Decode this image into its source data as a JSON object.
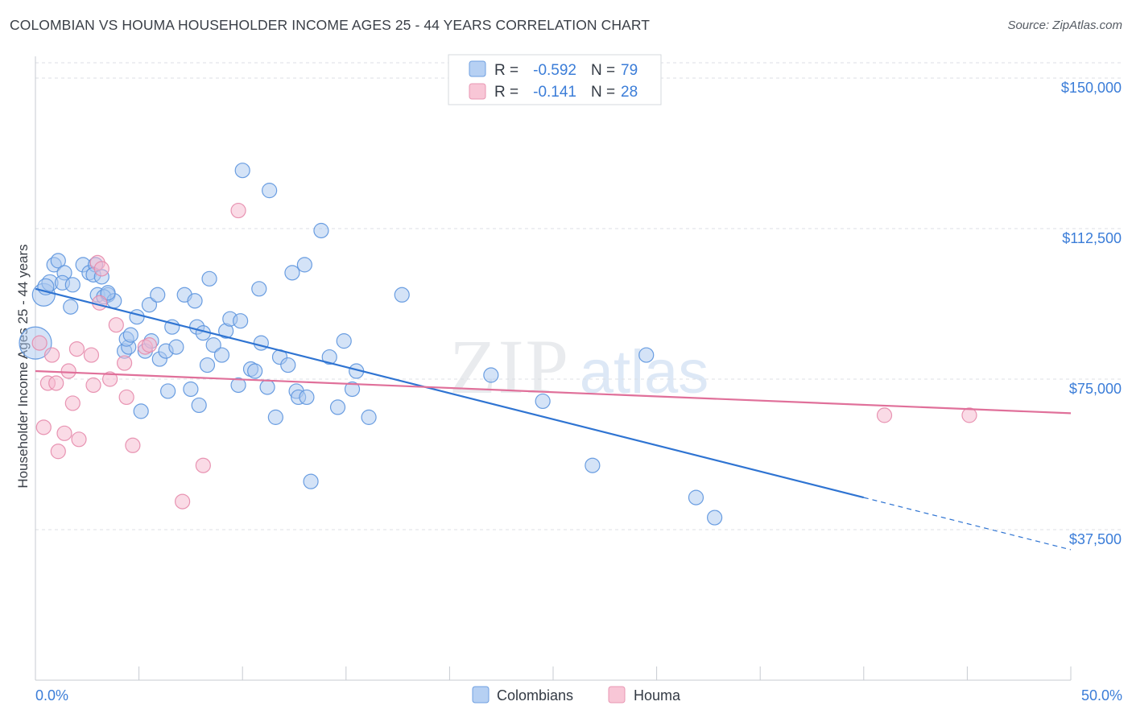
{
  "header": {
    "title": "COLOMBIAN VS HOUMA HOUSEHOLDER INCOME AGES 25 - 44 YEARS CORRELATION CHART",
    "source": "Source: ZipAtlas.com"
  },
  "watermark": {
    "zip": "ZIP",
    "atlas": "atlas"
  },
  "colors": {
    "blue": "#3b7dd8",
    "blue_fill": "#a9c8f0",
    "pink": "#e0709a",
    "pink_fill": "#f5b8cd",
    "axis_text": "#3b7dd8",
    "grid": "#dcdfe4"
  },
  "legend_top": {
    "rows": [
      {
        "r_label": "R =",
        "r_value": "-0.592",
        "n_label": "N =",
        "n_value": "79"
      },
      {
        "r_label": "R =",
        "r_value": "-0.141",
        "n_label": "N =",
        "n_value": "28"
      }
    ]
  },
  "legend_bottom": {
    "items": [
      "Colombians",
      "Houma"
    ]
  },
  "chart_data": {
    "type": "scatter",
    "xlabel": "",
    "ylabel": "Householder Income Ages 25 - 44 years",
    "xlim": [
      0,
      50
    ],
    "ylim": [
      0,
      160000
    ],
    "x_tick_labels": [
      "0.0%",
      "50.0%"
    ],
    "y_ticks": [
      37500,
      75000,
      112500,
      150000
    ],
    "y_tick_labels": [
      "$37,500",
      "$75,000",
      "$112,500",
      "$150,000"
    ],
    "grid": true,
    "series": [
      {
        "name": "Colombians",
        "color": "#3b7dd8",
        "trend": {
          "x": [
            0,
            40
          ],
          "y": [
            97500,
            45500
          ],
          "dashed_to": [
            50,
            32500
          ]
        },
        "points": [
          [
            0.0,
            84000,
            20
          ],
          [
            0.4,
            96000,
            14
          ],
          [
            0.7,
            99000,
            10
          ],
          [
            0.5,
            98000,
            10
          ],
          [
            0.9,
            103500,
            9
          ],
          [
            1.1,
            104500,
            9
          ],
          [
            1.4,
            101500,
            9
          ],
          [
            1.3,
            99000,
            9
          ],
          [
            1.8,
            98500,
            9
          ],
          [
            1.7,
            93000,
            9
          ],
          [
            2.3,
            103500,
            9
          ],
          [
            2.6,
            101500,
            9
          ],
          [
            2.9,
            103500,
            9
          ],
          [
            2.8,
            101000,
            9
          ],
          [
            3.2,
            100500,
            9
          ],
          [
            3.0,
            96000,
            9
          ],
          [
            3.5,
            96000,
            9
          ],
          [
            3.3,
            95500,
            9
          ],
          [
            3.8,
            94500,
            9
          ],
          [
            4.3,
            82000,
            9
          ],
          [
            4.5,
            83000,
            9
          ],
          [
            4.4,
            85000,
            9
          ],
          [
            4.6,
            86000,
            9
          ],
          [
            4.9,
            90500,
            9
          ],
          [
            5.1,
            67000,
            9
          ],
          [
            5.3,
            82000,
            9
          ],
          [
            5.5,
            93500,
            9
          ],
          [
            5.6,
            84500,
            9
          ],
          [
            5.9,
            96000,
            9
          ],
          [
            6.0,
            80000,
            9
          ],
          [
            6.3,
            82000,
            9
          ],
          [
            6.4,
            72000,
            9
          ],
          [
            6.6,
            88000,
            9
          ],
          [
            6.8,
            83000,
            9
          ],
          [
            7.2,
            96000,
            9
          ],
          [
            7.5,
            72500,
            9
          ],
          [
            7.7,
            94500,
            9
          ],
          [
            7.8,
            88000,
            9
          ],
          [
            7.9,
            68500,
            9
          ],
          [
            8.1,
            86500,
            9
          ],
          [
            8.3,
            78500,
            9
          ],
          [
            8.4,
            100000,
            9
          ],
          [
            8.6,
            83500,
            9
          ],
          [
            9.0,
            81000,
            9
          ],
          [
            9.2,
            87000,
            9
          ],
          [
            9.4,
            90000,
            9
          ],
          [
            9.8,
            73500,
            9
          ],
          [
            9.9,
            89500,
            9
          ],
          [
            10.0,
            127000,
            9
          ],
          [
            10.4,
            77500,
            9
          ],
          [
            10.6,
            77000,
            9
          ],
          [
            10.8,
            97500,
            9
          ],
          [
            10.9,
            84000,
            9
          ],
          [
            11.2,
            73000,
            9
          ],
          [
            11.3,
            122000,
            9
          ],
          [
            11.6,
            65500,
            9
          ],
          [
            11.8,
            80500,
            9
          ],
          [
            12.2,
            78500,
            9
          ],
          [
            12.4,
            101500,
            9
          ],
          [
            12.6,
            72000,
            9
          ],
          [
            12.7,
            70500,
            9
          ],
          [
            13.0,
            103500,
            9
          ],
          [
            13.1,
            70500,
            9
          ],
          [
            13.3,
            49500,
            9
          ],
          [
            13.8,
            112000,
            9
          ],
          [
            14.2,
            80500,
            9
          ],
          [
            14.6,
            68000,
            9
          ],
          [
            14.9,
            84500,
            9
          ],
          [
            15.3,
            72500,
            9
          ],
          [
            15.5,
            77000,
            9
          ],
          [
            16.1,
            65500,
            9
          ],
          [
            17.7,
            96000,
            9
          ],
          [
            22.0,
            76000,
            9
          ],
          [
            24.5,
            69500,
            9
          ],
          [
            26.9,
            53500,
            9
          ],
          [
            29.5,
            81000,
            9
          ],
          [
            31.9,
            45500,
            9
          ],
          [
            32.8,
            40500,
            9
          ],
          [
            3.5,
            96500,
            9
          ]
        ]
      },
      {
        "name": "Houma",
        "color": "#e0709a",
        "trend": {
          "x": [
            0,
            50
          ],
          "y": [
            77000,
            66500
          ]
        },
        "points": [
          [
            0.2,
            84000,
            9
          ],
          [
            0.4,
            63000,
            9
          ],
          [
            0.6,
            74000,
            9
          ],
          [
            0.8,
            81000,
            9
          ],
          [
            1.0,
            74000,
            9
          ],
          [
            1.1,
            57000,
            9
          ],
          [
            1.4,
            61500,
            9
          ],
          [
            1.6,
            77000,
            9
          ],
          [
            1.8,
            69000,
            9
          ],
          [
            2.0,
            82500,
            9
          ],
          [
            2.1,
            60000,
            9
          ],
          [
            2.7,
            81000,
            9
          ],
          [
            2.8,
            73500,
            9
          ],
          [
            3.0,
            104000,
            9
          ],
          [
            3.1,
            94000,
            9
          ],
          [
            3.2,
            102500,
            9
          ],
          [
            3.6,
            75000,
            9
          ],
          [
            3.9,
            88500,
            9
          ],
          [
            4.3,
            79000,
            9
          ],
          [
            4.4,
            70500,
            9
          ],
          [
            4.7,
            58500,
            9
          ],
          [
            5.3,
            83000,
            9
          ],
          [
            5.5,
            83500,
            9
          ],
          [
            7.1,
            44500,
            9
          ],
          [
            8.1,
            53500,
            9
          ],
          [
            9.8,
            117000,
            9
          ],
          [
            41.0,
            66000,
            9
          ],
          [
            45.1,
            66000,
            9
          ]
        ]
      }
    ]
  }
}
